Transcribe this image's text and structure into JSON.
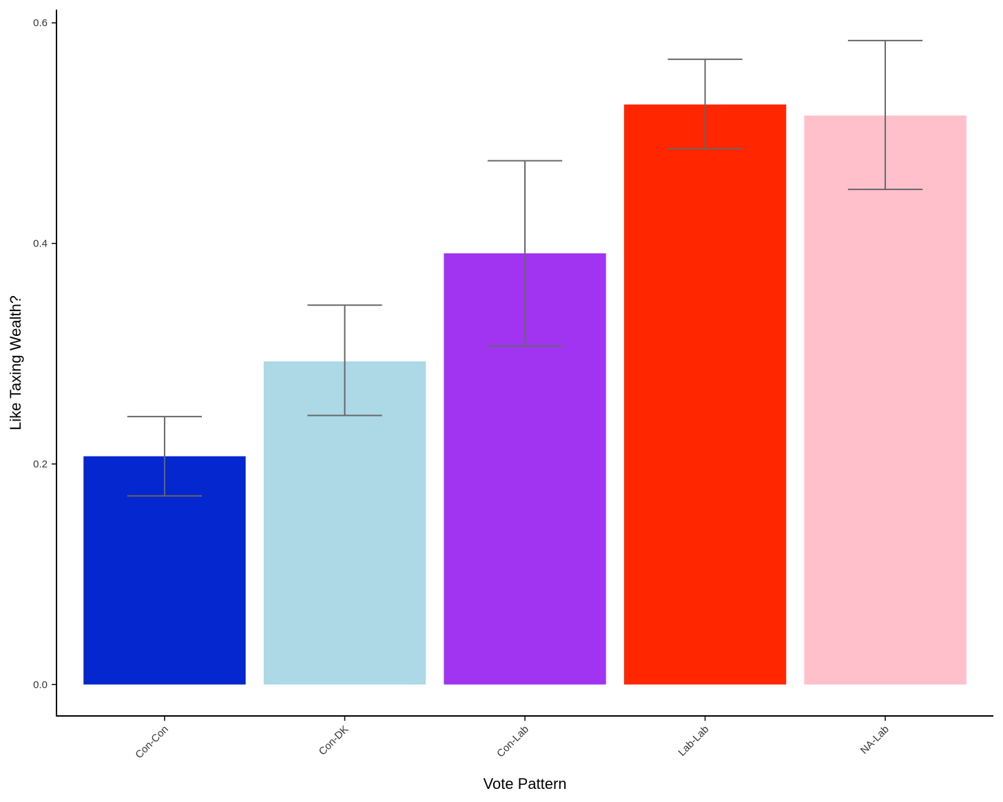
{
  "chart_data": {
    "type": "bar",
    "title": "",
    "xlabel": "Vote Pattern",
    "ylabel": "Like Taxing Wealth?",
    "ylim": [
      -0.0285,
      0.612
    ],
    "yticks": [
      0.0,
      0.2,
      0.4,
      0.6
    ],
    "ytick_labels": [
      "0.0",
      "0.2",
      "0.4",
      "0.6"
    ],
    "categories": [
      "Con-Con",
      "Con-DK",
      "Con-Lab",
      "Lab-Lab",
      "NA-Lab"
    ],
    "values": [
      0.207,
      0.293,
      0.391,
      0.526,
      0.516
    ],
    "error_low": [
      0.171,
      0.244,
      0.307,
      0.486,
      0.449
    ],
    "error_high": [
      0.243,
      0.344,
      0.475,
      0.567,
      0.584
    ],
    "colors": [
      "#0527CF",
      "#ADD8E6",
      "#A034F0",
      "#FF2600",
      "#FFC0CB"
    ],
    "error_bar_color": "#666666",
    "grid": false,
    "legend": "none"
  }
}
